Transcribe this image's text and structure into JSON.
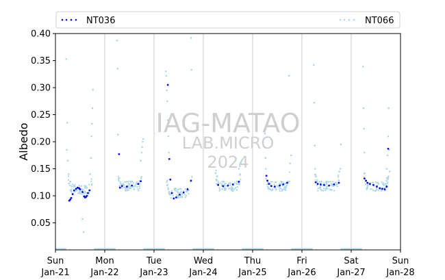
{
  "chart_data": {
    "type": "scatter",
    "ylabel": "Albedo",
    "ylim": [
      0.0,
      0.4
    ],
    "yticks": [
      {
        "v": 0.05,
        "label": "0.05"
      },
      {
        "v": 0.1,
        "label": "0.10"
      },
      {
        "v": 0.15,
        "label": "0.15"
      },
      {
        "v": 0.2,
        "label": "0.20"
      },
      {
        "v": 0.25,
        "label": "0.25"
      },
      {
        "v": 0.3,
        "label": "0.30"
      },
      {
        "v": 0.35,
        "label": "0.35"
      },
      {
        "v": 0.4,
        "label": "0.40"
      }
    ],
    "xlim": [
      "2024-01-21",
      "2024-01-28"
    ],
    "xticks": [
      {
        "day": 0,
        "weekday": "Sun",
        "date": "Jan-21"
      },
      {
        "day": 1,
        "weekday": "Mon",
        "date": "Jan-22"
      },
      {
        "day": 2,
        "weekday": "Tue",
        "date": "Jan-23"
      },
      {
        "day": 3,
        "weekday": "Wed",
        "date": "Jan-24"
      },
      {
        "day": 4,
        "weekday": "Thu",
        "date": "Jan-25"
      },
      {
        "day": 5,
        "weekday": "Fri",
        "date": "Jan-26"
      },
      {
        "day": 6,
        "weekday": "Sat",
        "date": "Jan-27"
      },
      {
        "day": 7,
        "weekday": "Sun",
        "date": "Jan-28"
      }
    ],
    "grid": "vertical lines at each day",
    "legend_placement": "top, above plot",
    "watermark": [
      "IAG-MATAO",
      "LAB.MICRO",
      "2024"
    ],
    "series": [
      {
        "name": "NT036",
        "color": "#0000ff",
        "marker": "dots",
        "days": [
          {
            "day": 0,
            "x": [
              0.28,
              0.3,
              0.32,
              0.35,
              0.38,
              0.42,
              0.45,
              0.48,
              0.5,
              0.55
            ],
            "y": [
              0.091,
              0.093,
              0.096,
              0.103,
              0.11,
              0.113,
              0.115,
              0.114,
              0.112,
              0.107
            ]
          },
          {
            "day": 0,
            "x": [
              0.58,
              0.6,
              0.62,
              0.64,
              0.66,
              0.69
            ],
            "y": [
              0.099,
              0.097,
              0.098,
              0.1,
              0.105,
              0.11
            ]
          },
          {
            "day": 1,
            "x": [
              0.29,
              0.31,
              0.35,
              0.45,
              0.55,
              0.68,
              0.73
            ],
            "y": [
              0.177,
              0.115,
              0.118,
              0.117,
              0.119,
              0.122,
              0.127
            ]
          },
          {
            "day": 2,
            "x": [
              0.28,
              0.31,
              0.33,
              0.36,
              0.4,
              0.45,
              0.52,
              0.6,
              0.68,
              0.75
            ],
            "y": [
              0.305,
              0.168,
              0.13,
              0.105,
              0.095,
              0.097,
              0.102,
              0.106,
              0.112,
              0.128
            ]
          },
          {
            "day": 3,
            "x": [
              0.3,
              0.4,
              0.5,
              0.6,
              0.72
            ],
            "y": [
              0.12,
              0.118,
              0.119,
              0.121,
              0.126
            ]
          },
          {
            "day": 4,
            "x": [
              0.28,
              0.3,
              0.33,
              0.38,
              0.45,
              0.55,
              0.62,
              0.7
            ],
            "y": [
              0.137,
              0.128,
              0.122,
              0.118,
              0.117,
              0.119,
              0.121,
              0.124
            ]
          },
          {
            "day": 5,
            "x": [
              0.28,
              0.32,
              0.38,
              0.45,
              0.55,
              0.65,
              0.75
            ],
            "y": [
              0.125,
              0.122,
              0.121,
              0.12,
              0.119,
              0.121,
              0.124
            ]
          },
          {
            "day": 6,
            "x": [
              0.27,
              0.3,
              0.33,
              0.38,
              0.45,
              0.52,
              0.58,
              0.63,
              0.68,
              0.72,
              0.75
            ],
            "y": [
              0.132,
              0.128,
              0.124,
              0.122,
              0.12,
              0.117,
              0.114,
              0.113,
              0.112,
              0.117,
              0.187
            ]
          }
        ]
      },
      {
        "name": "NT066",
        "color": "#add8e6",
        "marker": "dots",
        "days": [
          {
            "day": 0,
            "x": [
              0.22,
              0.24,
              0.23,
              0.25,
              0.27
            ],
            "y": [
              0.353,
              0.235,
              0.185,
              0.165,
              0.14
            ]
          },
          {
            "day": 0,
            "x": [
              0.55,
              0.57,
              0.6,
              0.62
            ],
            "y": [
              0.057,
              0.033,
              0.1,
              0.118
            ]
          },
          {
            "day": 0,
            "x": [
              0.7,
              0.72,
              0.73,
              0.74,
              0.75,
              0.76
            ],
            "y": [
              0.14,
              0.17,
              0.21,
              0.233,
              0.262,
              0.296
            ]
          },
          {
            "day": 1,
            "x": [
              0.25,
              0.26,
              0.27
            ],
            "y": [
              0.387,
              0.335,
              0.213
            ]
          },
          {
            "day": 1,
            "x": [
              0.73,
              0.75,
              0.76,
              0.77,
              0.78
            ],
            "y": [
              0.165,
              0.18,
              0.19,
              0.2,
              0.205
            ]
          },
          {
            "day": 2,
            "x": [
              0.24,
              0.25,
              0.26,
              0.27,
              0.28,
              0.29,
              0.3
            ],
            "y": [
              0.33,
              0.322,
              0.295,
              0.275,
              0.24,
              0.21,
              0.18
            ]
          },
          {
            "day": 2,
            "x": [
              0.75,
              0.76,
              0.77
            ],
            "y": [
              0.392,
              0.333,
              0.135
            ]
          },
          {
            "day": 3,
            "x": [
              0.25,
              0.26,
              0.27
            ],
            "y": [
              0.142,
              0.13,
              0.122
            ]
          },
          {
            "day": 3,
            "x": [
              0.72,
              0.74,
              0.76,
              0.78
            ],
            "y": [
              0.15,
              0.155,
              0.16,
              0.165
            ]
          },
          {
            "day": 4,
            "x": [
              0.25,
              0.26,
              0.27
            ],
            "y": [
              0.215,
              0.17,
              0.15
            ]
          },
          {
            "day": 4,
            "x": [
              0.74,
              0.76,
              0.78
            ],
            "y": [
              0.322,
              0.16,
              0.175
            ]
          },
          {
            "day": 5,
            "x": [
              0.24,
              0.25,
              0.26,
              0.27
            ],
            "y": [
              0.342,
              0.272,
              0.193,
              0.15
            ]
          },
          {
            "day": 5,
            "x": [
              0.76,
              0.78,
              0.79
            ],
            "y": [
              0.145,
              0.15,
              0.195
            ]
          },
          {
            "day": 6,
            "x": [
              0.24,
              0.25,
              0.26,
              0.27
            ],
            "y": [
              0.339,
              0.262,
              0.224,
              0.18
            ]
          },
          {
            "day": 6,
            "x": [
              0.72,
              0.74,
              0.75,
              0.76,
              0.77,
              0.78
            ],
            "y": [
              0.15,
              0.175,
              0.21,
              0.262,
              0.185,
              0.145
            ]
          }
        ],
        "baseline": [
          0.0,
          0.0
        ]
      }
    ]
  }
}
